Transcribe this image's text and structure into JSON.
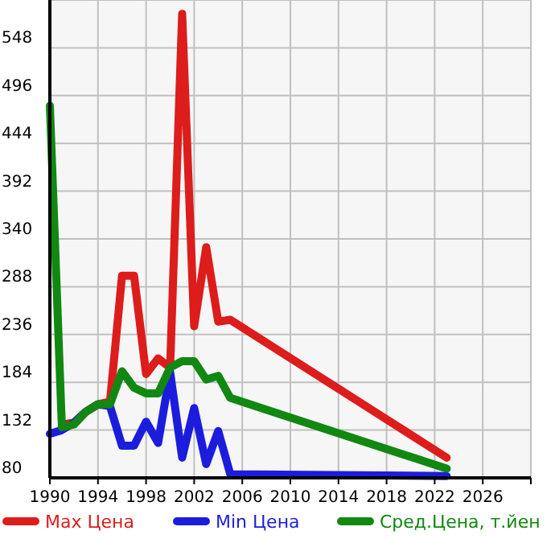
{
  "chart_data": {
    "type": "line",
    "x": [
      1990,
      1991,
      1992,
      1993,
      1994,
      1995,
      1996,
      1997,
      1998,
      1999,
      2000,
      2001,
      2002,
      2003,
      2004,
      2005,
      2023
    ],
    "series": [
      {
        "name": "Max Цена",
        "color": "#dd1c1c",
        "x": [
          1991,
          1992,
          1993,
          1994,
          1995,
          1996,
          1997,
          1998,
          1999,
          2000,
          2001,
          2002,
          2003,
          2004,
          2005,
          2023
        ],
        "values": [
          138,
          140,
          152,
          160,
          163,
          300,
          300,
          193,
          210,
          200,
          585,
          245,
          331,
          250,
          252,
          102
        ]
      },
      {
        "name": "Min Цена",
        "color": "#1c1cdd",
        "values": [
          128,
          132,
          140,
          152,
          160,
          158,
          115,
          115,
          141,
          118,
          195,
          102,
          156,
          95,
          131,
          84,
          82
        ]
      },
      {
        "name": "Сред.Цена, т.йен",
        "color": "#118811",
        "values": [
          485,
          135,
          138,
          152,
          160,
          160,
          196,
          178,
          172,
          172,
          200,
          207,
          207,
          187,
          191,
          167,
          90
        ]
      }
    ],
    "xlim": [
      1990,
      2030
    ],
    "xticks": [
      1990,
      1994,
      1998,
      2002,
      2006,
      2010,
      2014,
      2018,
      2022,
      2026,
      {
        "value": 2030,
        "label": null
      }
    ],
    "ylim": [
      80,
      600
    ],
    "yticks": [
      80,
      132,
      184,
      236,
      288,
      340,
      392,
      444,
      496,
      548
    ],
    "grid": true,
    "legend": "bottom",
    "marker": "none",
    "line_style": "solid"
  }
}
